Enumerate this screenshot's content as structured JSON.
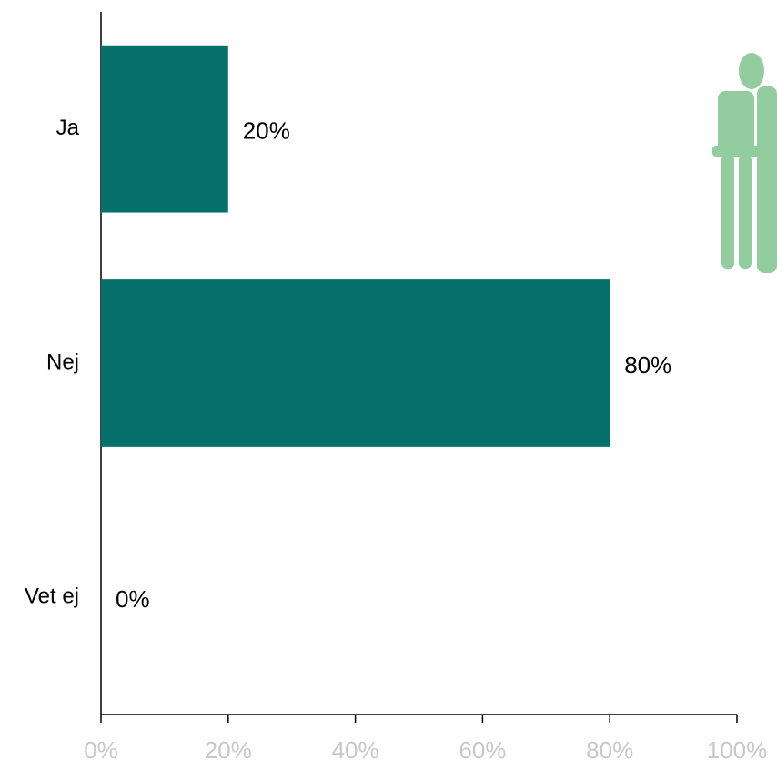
{
  "chart_data": {
    "type": "hbar",
    "categories": [
      "Ja",
      "Nej",
      "Vet ej"
    ],
    "values": [
      20,
      80,
      0
    ],
    "value_labels": [
      "20%",
      "80%",
      "0%"
    ],
    "color": "#06706b",
    "xlim": [
      0,
      100
    ],
    "xticks": [
      {
        "value": 0,
        "label": "0%"
      },
      {
        "value": 20,
        "label": "20%"
      },
      {
        "value": 40,
        "label": "40%"
      },
      {
        "value": 60,
        "label": "60%"
      },
      {
        "value": 80,
        "label": "80%"
      },
      {
        "value": 100,
        "label": "100%"
      }
    ],
    "grid": false
  }
}
